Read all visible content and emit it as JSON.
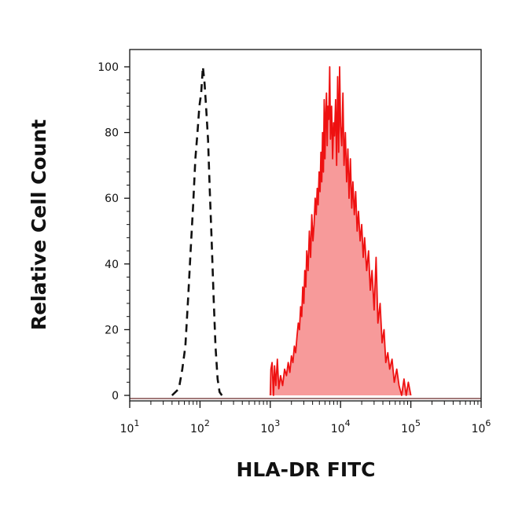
{
  "chart_data": {
    "type": "area",
    "title": "",
    "xlabel": "HLA-DR FITC",
    "ylabel": "Relative Cell Count",
    "x_scale": "log",
    "xlim": [
      10,
      1000000
    ],
    "ylim": [
      0,
      100
    ],
    "x_ticks": [
      {
        "value": 10,
        "base": "10",
        "exp": "1"
      },
      {
        "value": 100,
        "base": "10",
        "exp": "2"
      },
      {
        "value": 1000,
        "base": "10",
        "exp": "3"
      },
      {
        "value": 10000,
        "base": "10",
        "exp": "4"
      },
      {
        "value": 100000,
        "base": "10",
        "exp": "5"
      },
      {
        "value": 1000000,
        "base": "10",
        "exp": "6"
      }
    ],
    "y_ticks": [
      "0",
      "20",
      "40",
      "60",
      "80",
      "100"
    ],
    "grid": false,
    "legend": "none",
    "series": [
      {
        "style": "dashed-outline",
        "color": "#111111",
        "points": [
          [
            40,
            0
          ],
          [
            50,
            2
          ],
          [
            56,
            8
          ],
          [
            62,
            15
          ],
          [
            68,
            30
          ],
          [
            74,
            45
          ],
          [
            80,
            58
          ],
          [
            86,
            72
          ],
          [
            92,
            80
          ],
          [
            98,
            88
          ],
          [
            104,
            92
          ],
          [
            110,
            100
          ],
          [
            116,
            95
          ],
          [
            122,
            88
          ],
          [
            130,
            78
          ],
          [
            138,
            62
          ],
          [
            146,
            48
          ],
          [
            156,
            30
          ],
          [
            166,
            15
          ],
          [
            178,
            5
          ],
          [
            190,
            1
          ],
          [
            205,
            0
          ]
        ]
      },
      {
        "style": "filled",
        "color": "#ee1111",
        "fill": "#f79a9a",
        "points": [
          [
            1000,
            0
          ],
          [
            1020,
            8
          ],
          [
            1060,
            10
          ],
          [
            1110,
            0
          ],
          [
            1150,
            9
          ],
          [
            1200,
            3
          ],
          [
            1260,
            11
          ],
          [
            1320,
            2
          ],
          [
            1400,
            6
          ],
          [
            1500,
            3
          ],
          [
            1600,
            8
          ],
          [
            1700,
            6
          ],
          [
            1800,
            10
          ],
          [
            1900,
            7
          ],
          [
            2000,
            12
          ],
          [
            2100,
            10
          ],
          [
            2200,
            15
          ],
          [
            2300,
            13
          ],
          [
            2400,
            18
          ],
          [
            2500,
            22
          ],
          [
            2600,
            20
          ],
          [
            2700,
            27
          ],
          [
            2800,
            24
          ],
          [
            2900,
            33
          ],
          [
            3000,
            28
          ],
          [
            3100,
            38
          ],
          [
            3200,
            33
          ],
          [
            3300,
            44
          ],
          [
            3450,
            38
          ],
          [
            3600,
            50
          ],
          [
            3750,
            42
          ],
          [
            3900,
            55
          ],
          [
            4050,
            47
          ],
          [
            4200,
            52
          ],
          [
            4350,
            60
          ],
          [
            4500,
            55
          ],
          [
            4650,
            63
          ],
          [
            4800,
            58
          ],
          [
            4950,
            68
          ],
          [
            5100,
            62
          ],
          [
            5250,
            74
          ],
          [
            5400,
            65
          ],
          [
            5550,
            80
          ],
          [
            5700,
            68
          ],
          [
            5850,
            90
          ],
          [
            6000,
            72
          ],
          [
            6150,
            85
          ],
          [
            6300,
            92
          ],
          [
            6450,
            76
          ],
          [
            6600,
            88
          ],
          [
            6800,
            84
          ],
          [
            7000,
            100
          ],
          [
            7200,
            78
          ],
          [
            7450,
            88
          ],
          [
            7700,
            72
          ],
          [
            7950,
            83
          ],
          [
            8200,
            79
          ],
          [
            8500,
            90
          ],
          [
            8800,
            70
          ],
          [
            9100,
            97
          ],
          [
            9400,
            74
          ],
          [
            9700,
            100
          ],
          [
            10000,
            82
          ],
          [
            10400,
            76
          ],
          [
            10800,
            92
          ],
          [
            11200,
            70
          ],
          [
            11700,
            80
          ],
          [
            12200,
            65
          ],
          [
            12700,
            75
          ],
          [
            13200,
            60
          ],
          [
            13800,
            72
          ],
          [
            14400,
            57
          ],
          [
            15000,
            65
          ],
          [
            15700,
            55
          ],
          [
            16400,
            62
          ],
          [
            17200,
            50
          ],
          [
            18000,
            56
          ],
          [
            19000,
            47
          ],
          [
            20000,
            52
          ],
          [
            21000,
            42
          ],
          [
            22000,
            48
          ],
          [
            23500,
            38
          ],
          [
            25000,
            44
          ],
          [
            26500,
            32
          ],
          [
            28000,
            38
          ],
          [
            30000,
            26
          ],
          [
            32000,
            42
          ],
          [
            34000,
            22
          ],
          [
            36500,
            28
          ],
          [
            39000,
            16
          ],
          [
            41500,
            20
          ],
          [
            44000,
            10
          ],
          [
            47000,
            13
          ],
          [
            50000,
            8
          ],
          [
            54000,
            11
          ],
          [
            58000,
            4
          ],
          [
            63000,
            8
          ],
          [
            68000,
            3
          ],
          [
            74000,
            0
          ],
          [
            80000,
            5
          ],
          [
            86000,
            0
          ],
          [
            92000,
            4
          ],
          [
            100000,
            0
          ]
        ]
      }
    ]
  }
}
